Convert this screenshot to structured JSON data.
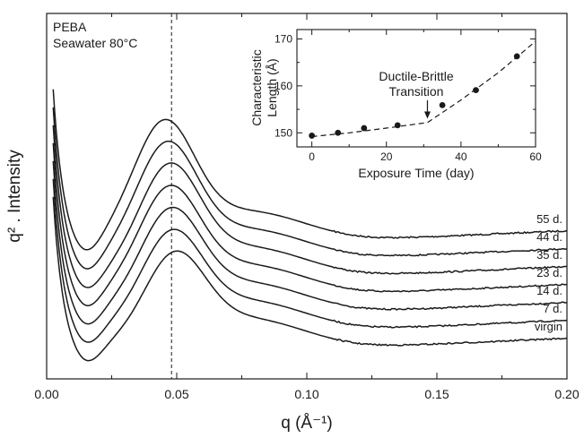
{
  "chart_data": [
    {
      "type": "line",
      "title": "",
      "annotation_lines": [
        "PEBA",
        "Seawater 80°C"
      ],
      "xlabel": "q (Å⁻¹)",
      "ylabel": "q² . Intensity",
      "xlim": [
        0.0,
        0.2
      ],
      "x_ticks": [
        0.0,
        0.05,
        0.1,
        0.15,
        0.2
      ],
      "x_tick_labels": [
        "0.00",
        "0.05",
        "0.10",
        "0.15",
        "0.20"
      ],
      "y_ticks_shown": false,
      "reference_line": {
        "x": 0.048,
        "style": "dashed"
      },
      "series": [
        {
          "name": "55 d.",
          "peak_q": 0.045
        },
        {
          "name": "44 d.",
          "peak_q": 0.046
        },
        {
          "name": "35 d.",
          "peak_q": 0.047
        },
        {
          "name": "23 d.",
          "peak_q": 0.047
        },
        {
          "name": "14 d.",
          "peak_q": 0.0475
        },
        {
          "name": "7 d.",
          "peak_q": 0.048
        },
        {
          "name": "virgin",
          "peak_q": 0.049
        }
      ]
    },
    {
      "type": "scatter",
      "title": "",
      "xlabel": "Exposure Time (day)",
      "ylabel_lines": [
        "Characteristic",
        "Length (Å)"
      ],
      "xlim": [
        -4,
        60
      ],
      "ylim": [
        147,
        172
      ],
      "x_ticks": [
        0,
        20,
        40,
        60
      ],
      "y_ticks": [
        150,
        160,
        170
      ],
      "points": [
        {
          "x": 0,
          "y": 149.4
        },
        {
          "x": 7,
          "y": 150.0
        },
        {
          "x": 14,
          "y": 151.0
        },
        {
          "x": 23,
          "y": 151.6
        },
        {
          "x": 35,
          "y": 155.9
        },
        {
          "x": 44,
          "y": 159.1
        },
        {
          "x": 55,
          "y": 166.3
        }
      ],
      "trend_line": {
        "style": "dashed",
        "x": [
          0,
          10,
          20,
          31,
          40,
          50,
          60
        ],
        "y": [
          149.2,
          150.0,
          151.0,
          152.2,
          157.0,
          162.8,
          169.5
        ]
      },
      "annotation": {
        "lines": [
          "Ductile-Brittle",
          "Transition"
        ],
        "arrow_to": {
          "x": 31,
          "y": 153.0
        }
      }
    }
  ]
}
